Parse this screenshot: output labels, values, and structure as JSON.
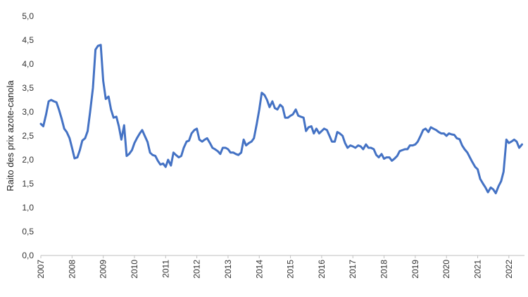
{
  "chart_data": {
    "type": "line",
    "ylabel": "Raito des prix azote-canola",
    "xlabel": "",
    "ylim": [
      0,
      5
    ],
    "yticks": [
      "0,0",
      "0,5",
      "1,0",
      "1,5",
      "2,0",
      "2,5",
      "3,0",
      "3,5",
      "4,0",
      "4,5",
      "5,0"
    ],
    "xticks": [
      "2007",
      "2008",
      "2009",
      "2010",
      "2011",
      "2012",
      "2013",
      "2014",
      "2015",
      "2016",
      "2017",
      "2018",
      "2019",
      "2020",
      "2021",
      "2022"
    ],
    "xlim": [
      2007.0,
      2022.5
    ],
    "grid": false,
    "line_color": "#4472C4",
    "series": [
      {
        "x": [
          2007.0,
          2007.08,
          2007.17,
          2007.25,
          2007.33,
          2007.42,
          2007.5,
          2007.58,
          2007.67,
          2007.75,
          2007.83,
          2007.92,
          2008.0,
          2008.08,
          2008.17,
          2008.25,
          2008.33,
          2008.42,
          2008.5,
          2008.58,
          2008.67,
          2008.75,
          2008.83,
          2008.92,
          2009.0,
          2009.08,
          2009.17,
          2009.25,
          2009.33,
          2009.42,
          2009.5,
          2009.58,
          2009.67,
          2009.75,
          2009.83,
          2009.92,
          2010.0,
          2010.08,
          2010.17,
          2010.25,
          2010.33,
          2010.42,
          2010.5,
          2010.58,
          2010.67,
          2010.75,
          2010.83,
          2010.92,
          2011.0,
          2011.08,
          2011.17,
          2011.25,
          2011.33,
          2011.42,
          2011.5,
          2011.58,
          2011.67,
          2011.75,
          2011.83,
          2011.92,
          2012.0,
          2012.08,
          2012.17,
          2012.25,
          2012.33,
          2012.42,
          2012.5,
          2012.58,
          2012.67,
          2012.75,
          2012.83,
          2012.92,
          2013.0,
          2013.08,
          2013.17,
          2013.25,
          2013.33,
          2013.42,
          2013.5,
          2013.58,
          2013.67,
          2013.75,
          2013.83,
          2013.92,
          2014.0,
          2014.08,
          2014.17,
          2014.25,
          2014.33,
          2014.42,
          2014.5,
          2014.58,
          2014.67,
          2014.75,
          2014.83,
          2014.92,
          2015.0,
          2015.08,
          2015.17,
          2015.25,
          2015.33,
          2015.42,
          2015.5,
          2015.58,
          2015.67,
          2015.75,
          2015.83,
          2015.92,
          2016.0,
          2016.08,
          2016.17,
          2016.25,
          2016.33,
          2016.42,
          2016.5,
          2016.58,
          2016.67,
          2016.75,
          2016.83,
          2016.92,
          2017.0,
          2017.08,
          2017.17,
          2017.25,
          2017.33,
          2017.42,
          2017.5,
          2017.58,
          2017.67,
          2017.75,
          2017.83,
          2017.92,
          2018.0,
          2018.08,
          2018.17,
          2018.25,
          2018.33,
          2018.42,
          2018.5,
          2018.58,
          2018.67,
          2018.75,
          2018.83,
          2018.92,
          2019.0,
          2019.08,
          2019.17,
          2019.25,
          2019.33,
          2019.42,
          2019.5,
          2019.58,
          2019.67,
          2019.75,
          2019.83,
          2019.92,
          2020.0,
          2020.08,
          2020.17,
          2020.25,
          2020.33,
          2020.42,
          2020.5,
          2020.58,
          2020.67,
          2020.75,
          2020.83,
          2020.92,
          2021.0,
          2021.08,
          2021.17,
          2021.25,
          2021.33,
          2021.42,
          2021.5,
          2021.58,
          2021.67,
          2021.75,
          2021.83,
          2021.92,
          2022.0,
          2022.08,
          2022.17,
          2022.25,
          2022.33,
          2022.42
        ],
        "values": [
          2.75,
          2.7,
          2.95,
          3.22,
          3.25,
          3.22,
          3.2,
          3.05,
          2.85,
          2.65,
          2.58,
          2.45,
          2.25,
          2.03,
          2.05,
          2.2,
          2.4,
          2.45,
          2.6,
          3.0,
          3.5,
          4.3,
          4.38,
          4.4,
          3.65,
          3.27,
          3.32,
          3.05,
          2.88,
          2.9,
          2.7,
          2.42,
          2.72,
          2.08,
          2.12,
          2.2,
          2.35,
          2.45,
          2.55,
          2.62,
          2.5,
          2.37,
          2.15,
          2.1,
          2.08,
          1.98,
          1.9,
          1.92,
          1.85,
          2.0,
          1.88,
          2.15,
          2.1,
          2.05,
          2.08,
          2.25,
          2.38,
          2.4,
          2.55,
          2.62,
          2.65,
          2.42,
          2.38,
          2.42,
          2.45,
          2.35,
          2.25,
          2.22,
          2.18,
          2.12,
          2.25,
          2.25,
          2.22,
          2.15,
          2.15,
          2.12,
          2.1,
          2.15,
          2.42,
          2.3,
          2.35,
          2.38,
          2.45,
          2.75,
          3.05,
          3.4,
          3.35,
          3.25,
          3.1,
          3.22,
          3.08,
          3.05,
          3.15,
          3.1,
          2.88,
          2.88,
          2.92,
          2.95,
          3.05,
          2.92,
          2.9,
          2.88,
          2.6,
          2.68,
          2.7,
          2.55,
          2.65,
          2.55,
          2.6,
          2.65,
          2.62,
          2.5,
          2.38,
          2.38,
          2.58,
          2.55,
          2.5,
          2.35,
          2.25,
          2.3,
          2.28,
          2.25,
          2.3,
          2.28,
          2.22,
          2.32,
          2.25,
          2.25,
          2.22,
          2.1,
          2.05,
          2.12,
          2.02,
          2.05,
          2.05,
          1.98,
          2.02,
          2.08,
          2.18,
          2.2,
          2.22,
          2.22,
          2.3,
          2.3,
          2.32,
          2.38,
          2.5,
          2.62,
          2.65,
          2.58,
          2.68,
          2.65,
          2.62,
          2.58,
          2.55,
          2.55,
          2.5,
          2.55,
          2.53,
          2.52,
          2.45,
          2.43,
          2.3,
          2.22,
          2.15,
          2.05,
          1.95,
          1.85,
          1.8,
          1.6,
          1.5,
          1.42,
          1.32,
          1.42,
          1.38,
          1.3,
          1.45,
          1.55,
          1.75,
          2.42,
          2.35,
          2.38,
          2.42,
          2.38,
          2.25,
          2.32
        ]
      }
    ]
  }
}
